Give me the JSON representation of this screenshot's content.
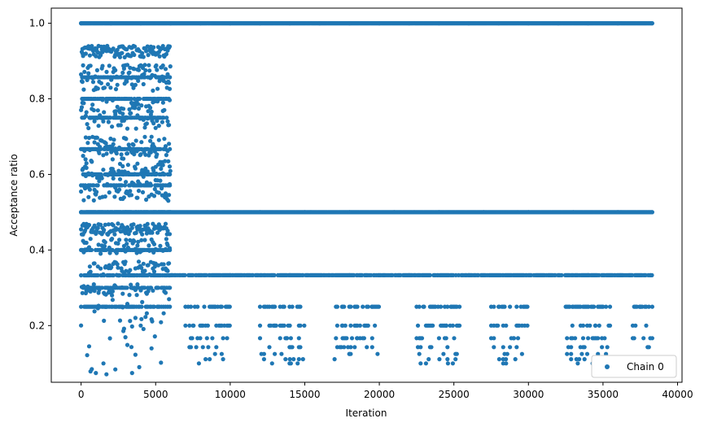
{
  "chart_data": {
    "type": "scatter",
    "title": "",
    "xlabel": "Iteration",
    "ylabel": "Acceptance ratio",
    "xlim": [
      -2000,
      40300
    ],
    "ylim": [
      0.05,
      1.04
    ],
    "xticks": [
      0,
      5000,
      10000,
      15000,
      20000,
      25000,
      30000,
      35000,
      40000
    ],
    "yticks": [
      0.2,
      0.4,
      0.6,
      0.8,
      1.0
    ],
    "xtick_labels": [
      "0",
      "5000",
      "10000",
      "15000",
      "20000",
      "25000",
      "30000",
      "35000",
      "40000"
    ],
    "ytick_labels": [
      "0.2",
      "0.4",
      "0.6",
      "0.8",
      "1.0"
    ],
    "grid": false,
    "legend_position": "lower-right",
    "series": [
      {
        "name": "Chain 0",
        "color": "#1f77b4",
        "marker": "circle",
        "description_levels": {
          "phase1_x_range": [
            0,
            6000
          ],
          "phase2_x_range": [
            6000,
            38300
          ],
          "dense_levels_full_range": [
            1.0,
            0.5
          ],
          "dense_levels_phase2": [
            0.3333
          ],
          "sparse_levels_phase2": [
            0.25,
            0.2,
            0.1667,
            0.1429,
            0.125,
            0.1111,
            0.1
          ]
        },
        "points": [
          [
            0,
            1.0
          ],
          [
            2000,
            1.0
          ],
          [
            4000,
            1.0
          ],
          [
            6000,
            1.0
          ],
          [
            8000,
            1.0
          ],
          [
            10000,
            1.0
          ],
          [
            12000,
            1.0
          ],
          [
            14000,
            1.0
          ],
          [
            16000,
            1.0
          ],
          [
            18000,
            1.0
          ],
          [
            20000,
            1.0
          ],
          [
            22000,
            1.0
          ],
          [
            24000,
            1.0
          ],
          [
            26000,
            1.0
          ],
          [
            28000,
            1.0
          ],
          [
            30000,
            1.0
          ],
          [
            32000,
            1.0
          ],
          [
            34000,
            1.0
          ],
          [
            36000,
            1.0
          ],
          [
            38300,
            1.0
          ],
          [
            0,
            0.5
          ],
          [
            3000,
            0.5
          ],
          [
            6000,
            0.5
          ],
          [
            9000,
            0.5
          ],
          [
            12000,
            0.5
          ],
          [
            15000,
            0.5
          ],
          [
            18000,
            0.5
          ],
          [
            21000,
            0.5
          ],
          [
            24000,
            0.5
          ],
          [
            27000,
            0.5
          ],
          [
            30000,
            0.5
          ],
          [
            33000,
            0.5
          ],
          [
            36000,
            0.5
          ],
          [
            38300,
            0.5
          ],
          [
            6100,
            0.3333
          ],
          [
            10000,
            0.3333
          ],
          [
            14000,
            0.3333
          ],
          [
            18000,
            0.3333
          ],
          [
            22000,
            0.3333
          ],
          [
            26000,
            0.3333
          ],
          [
            30000,
            0.3333
          ],
          [
            34000,
            0.3333
          ],
          [
            38200,
            0.3333
          ],
          [
            7000,
            0.25
          ],
          [
            9000,
            0.25
          ],
          [
            12500,
            0.25
          ],
          [
            14500,
            0.25
          ],
          [
            17500,
            0.25
          ],
          [
            19500,
            0.25
          ],
          [
            23000,
            0.25
          ],
          [
            24800,
            0.25
          ],
          [
            28000,
            0.25
          ],
          [
            29500,
            0.25
          ],
          [
            33000,
            0.25
          ],
          [
            35000,
            0.25
          ],
          [
            37500,
            0.25
          ],
          [
            38300,
            0.25
          ],
          [
            7500,
            0.2
          ],
          [
            8500,
            0.2
          ],
          [
            13000,
            0.2
          ],
          [
            14000,
            0.2
          ],
          [
            17500,
            0.2
          ],
          [
            19000,
            0.2
          ],
          [
            23500,
            0.2
          ],
          [
            24500,
            0.2
          ],
          [
            28500,
            0.2
          ],
          [
            29300,
            0.2
          ],
          [
            33500,
            0.2
          ],
          [
            34500,
            0.2
          ],
          [
            8800,
            0.1667
          ],
          [
            13800,
            0.1667
          ],
          [
            18500,
            0.1667
          ],
          [
            24000,
            0.1667
          ],
          [
            29000,
            0.1667
          ],
          [
            34000,
            0.1667
          ],
          [
            38300,
            0.1667
          ],
          [
            14000,
            0.1111
          ],
          [
            18000,
            0.125
          ],
          [
            24600,
            0.1
          ],
          [
            28500,
            0.1
          ],
          [
            34300,
            0.1
          ],
          [
            100,
            0.92
          ],
          [
            300,
            0.64
          ],
          [
            500,
            0.54
          ],
          [
            1000,
            0.83
          ],
          [
            1500,
            0.1
          ],
          [
            2000,
            0.45
          ],
          [
            2500,
            0.73
          ],
          [
            3000,
            0.58
          ],
          [
            3500,
            0.88
          ],
          [
            4000,
            0.2
          ],
          [
            4500,
            0.36
          ],
          [
            5000,
            0.62
          ],
          [
            5500,
            0.79
          ],
          [
            5900,
            0.27
          ],
          [
            1700,
            0.071
          ],
          [
            3900,
            0.09
          ]
        ]
      }
    ]
  }
}
